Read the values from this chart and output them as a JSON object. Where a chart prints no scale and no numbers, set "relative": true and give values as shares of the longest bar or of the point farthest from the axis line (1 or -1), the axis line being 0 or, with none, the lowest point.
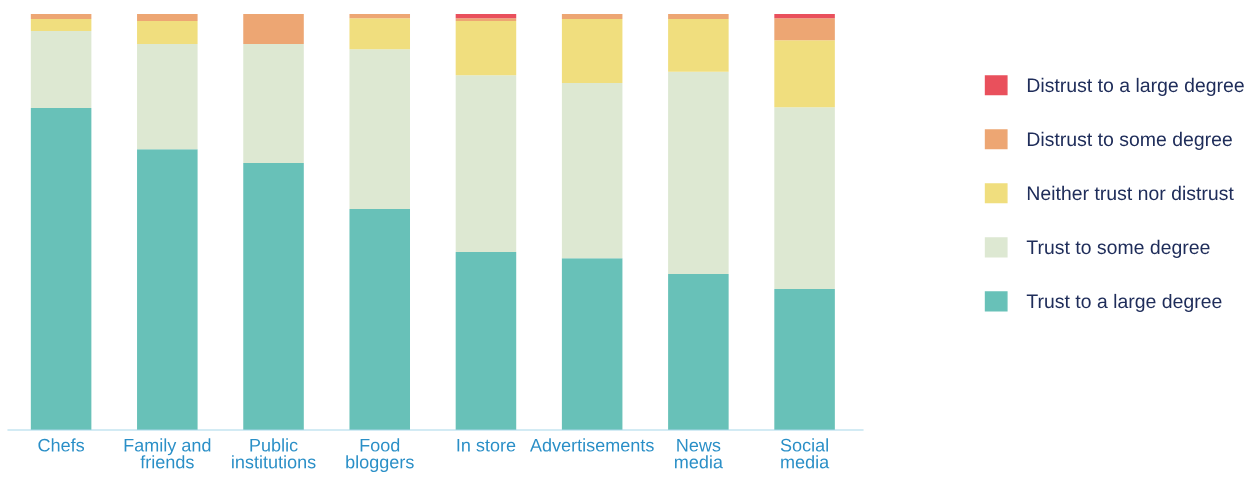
{
  "chart_data": {
    "type": "bar",
    "stacked": true,
    "relative": true,
    "legend": "right",
    "grid": false,
    "categories": [
      "Chefs",
      "Family and\nfriends",
      "Public\ninstitutions",
      "Food\nbloggers",
      "In store",
      "Advertisements",
      "News\nmedia",
      "Social\nmedia"
    ],
    "series": [
      {
        "name": "Trust to a large degree",
        "color": "#68c1b8",
        "values": [
          0.774,
          0.675,
          0.642,
          0.531,
          0.428,
          0.413,
          0.375,
          0.339
        ]
      },
      {
        "name": "Trust to some degree",
        "color": "#dde8d2",
        "values": [
          0.185,
          0.253,
          0.286,
          0.384,
          0.425,
          0.421,
          0.486,
          0.437
        ]
      },
      {
        "name": "Neither trust nor distrust",
        "color": "#f0de7e",
        "values": [
          0.029,
          0.055,
          0,
          0.075,
          0.13,
          0.154,
          0.127,
          0.161
        ]
      },
      {
        "name": "Distrust to some degree",
        "color": "#eda673",
        "values": [
          0.012,
          0.017,
          0.072,
          0.01,
          0.007,
          0.012,
          0.012,
          0.053
        ]
      },
      {
        "name": "Distrust to a large degree",
        "color": "#e9505c",
        "values": [
          0,
          0,
          0,
          0,
          0.01,
          0,
          0,
          0.01
        ]
      }
    ]
  }
}
